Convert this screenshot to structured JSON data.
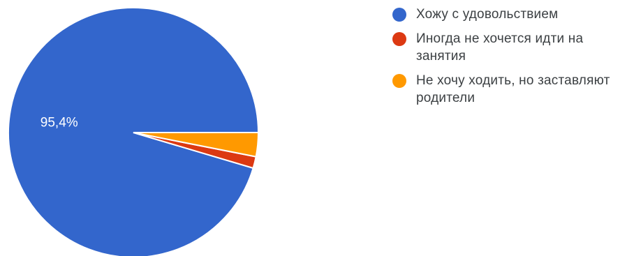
{
  "chart_data": {
    "type": "pie",
    "title": "",
    "categories": [
      "Хожу с удовольствием",
      "Иногда не хочется идти на занятия",
      "Не хочу ходить, но заставляют родители"
    ],
    "values": [
      95.4,
      1.5,
      3.1
    ],
    "colors": [
      "#3366cc",
      "#dc3912",
      "#ff9900"
    ],
    "data_labels": [
      "95,4%",
      "",
      ""
    ],
    "legend_position": "right"
  }
}
